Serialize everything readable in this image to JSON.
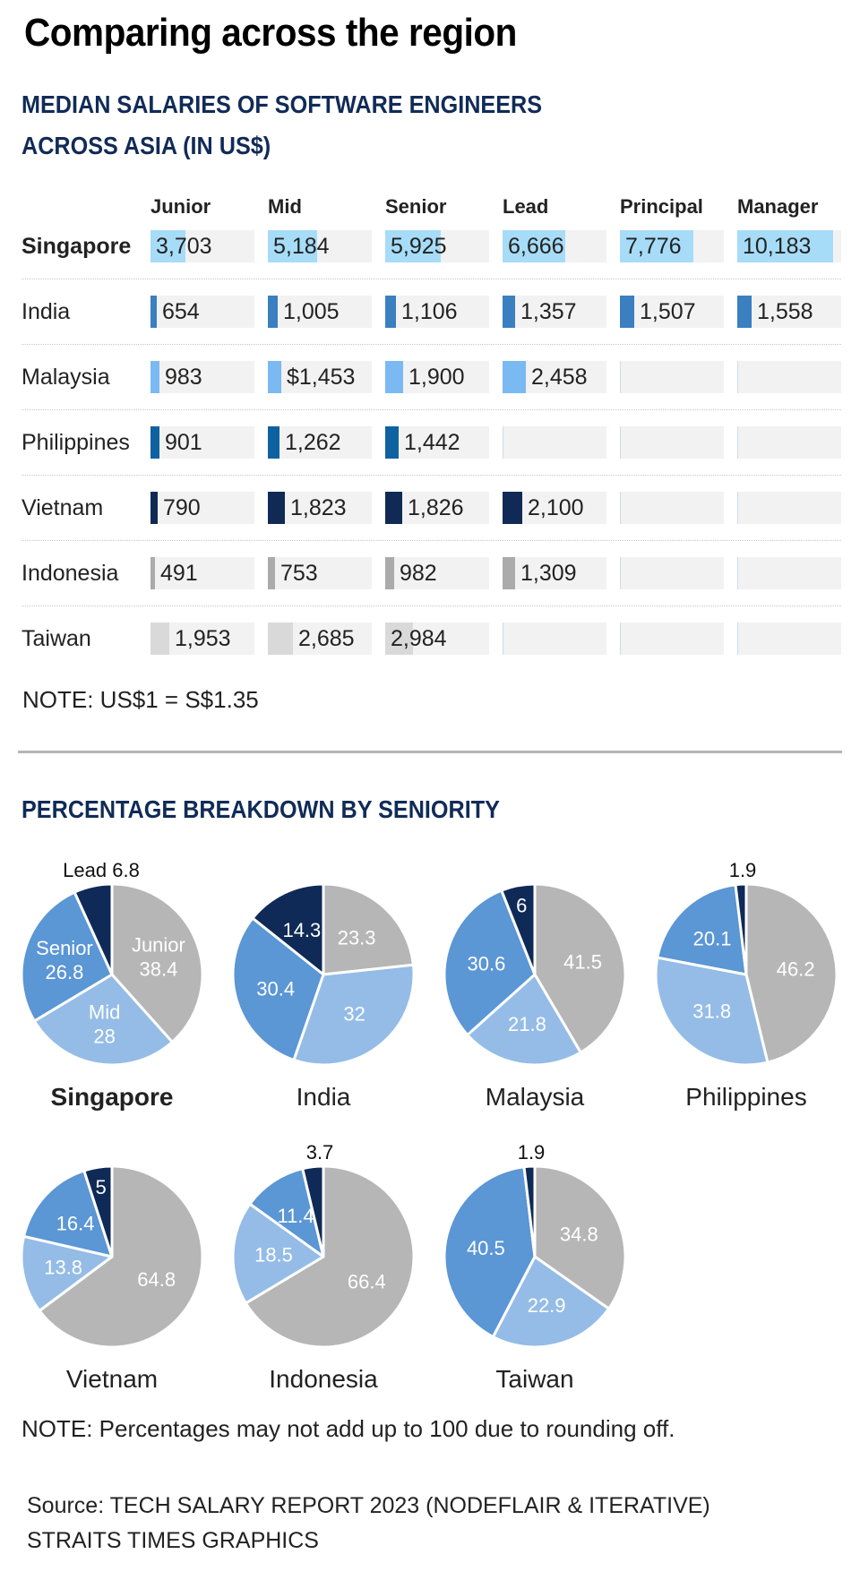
{
  "title": "Comparing across the region",
  "salary_section": {
    "heading_line1": "MEDIAN SALARIES OF SOFTWARE ENGINEERS",
    "heading_line2": "ACROSS ASIA (IN US$)",
    "note": "NOTE: US$1 = S$1.35"
  },
  "pie_section": {
    "heading": "PERCENTAGE BREAKDOWN BY SENIORITY",
    "note": "NOTE: Percentages may not add up to 100 due to rounding off."
  },
  "source": {
    "line1": "Source: TECH SALARY REPORT 2023 (NODEFLAIR & ITERATIVE)",
    "line2": "STRAITS TIMES GRAPHICS"
  },
  "colors": {
    "singapore": "#a6dcf7",
    "india": "#3a7fc0",
    "malaysia": "#7ab9f2",
    "philippines": "#0f62a0",
    "vietnam": "#102a55",
    "indonesia": "#ababab",
    "taiwan": "#d9d9d9",
    "junior": "#b6b6b6",
    "mid": "#94bce6",
    "senior": "#5b96d5",
    "lead": "#0f2a57",
    "heading": "#112b57"
  },
  "chart_data": [
    {
      "type": "table",
      "title": "MEDIAN SALARIES OF SOFTWARE ENGINEERS ACROSS ASIA (IN US$)",
      "columns": [
        "Junior",
        "Mid",
        "Senior",
        "Lead",
        "Principal",
        "Manager"
      ],
      "bar_scale_max": 11000,
      "rows": [
        {
          "country": "Singapore",
          "bold": true,
          "color_key": "singapore",
          "display": [
            "3,703",
            "5,184",
            "5,925",
            "6,666",
            "7,776",
            "10,183"
          ],
          "values": [
            3703,
            5184,
            5925,
            6666,
            7776,
            10183
          ]
        },
        {
          "country": "India",
          "bold": false,
          "color_key": "india",
          "display": [
            "654",
            "1,005",
            "1,106",
            "1,357",
            "1,507",
            "1,558"
          ],
          "values": [
            654,
            1005,
            1106,
            1357,
            1507,
            1558
          ]
        },
        {
          "country": "Malaysia",
          "bold": false,
          "color_key": "malaysia",
          "display": [
            "983",
            "$1,453",
            "1,900",
            "2,458",
            "",
            ""
          ],
          "values": [
            983,
            1453,
            1900,
            2458,
            null,
            null
          ]
        },
        {
          "country": "Philippines",
          "bold": false,
          "color_key": "philippines",
          "display": [
            "901",
            "1,262",
            "1,442",
            "",
            "",
            ""
          ],
          "values": [
            901,
            1262,
            1442,
            null,
            null,
            null
          ]
        },
        {
          "country": "Vietnam",
          "bold": false,
          "color_key": "vietnam",
          "display": [
            "790",
            "1,823",
            "1,826",
            "2,100",
            "",
            ""
          ],
          "values": [
            790,
            1823,
            1826,
            2100,
            null,
            null
          ]
        },
        {
          "country": "Indonesia",
          "bold": false,
          "color_key": "indonesia",
          "display": [
            "491",
            "753",
            "982",
            "1,309",
            "",
            ""
          ],
          "values": [
            491,
            753,
            982,
            1309,
            null,
            null
          ]
        },
        {
          "country": "Taiwan",
          "bold": false,
          "color_key": "taiwan",
          "display": [
            "1,953",
            "2,685",
            "2,984",
            "",
            "",
            ""
          ],
          "values": [
            1953,
            2685,
            2984,
            null,
            null,
            null
          ]
        }
      ]
    },
    {
      "type": "pie",
      "title": "PERCENTAGE BREAKDOWN BY SENIORITY",
      "categories": [
        "Junior",
        "Mid",
        "Senior",
        "Lead"
      ],
      "pies": [
        {
          "country": "Singapore",
          "bold": true,
          "values": [
            38.4,
            28,
            26.8,
            6.8
          ],
          "labels": [
            "Junior\n38.4",
            "Mid\n28",
            "Senior\n26.8",
            "Lead 6.8"
          ],
          "outside": [
            false,
            false,
            false,
            true
          ]
        },
        {
          "country": "India",
          "bold": false,
          "values": [
            23.3,
            32,
            30.4,
            14.3
          ],
          "labels": [
            "23.3",
            "32",
            "30.4",
            "14.3"
          ],
          "outside": [
            false,
            false,
            false,
            false
          ]
        },
        {
          "country": "Malaysia",
          "bold": false,
          "values": [
            41.5,
            21.8,
            30.6,
            6
          ],
          "labels": [
            "41.5",
            "21.8",
            "30.6",
            "6"
          ],
          "outside": [
            false,
            false,
            false,
            false
          ]
        },
        {
          "country": "Philippines",
          "bold": false,
          "values": [
            46.2,
            31.8,
            20.1,
            1.9
          ],
          "labels": [
            "46.2",
            "31.8",
            "20.1",
            "1.9"
          ],
          "outside": [
            false,
            false,
            false,
            true
          ]
        },
        {
          "country": "Vietnam",
          "bold": false,
          "values": [
            64.8,
            13.8,
            16.4,
            5
          ],
          "labels": [
            "64.8",
            "13.8",
            "16.4",
            "5"
          ],
          "outside": [
            false,
            false,
            false,
            false
          ]
        },
        {
          "country": "Indonesia",
          "bold": false,
          "values": [
            66.4,
            18.5,
            11.4,
            3.7
          ],
          "labels": [
            "66.4",
            "18.5",
            "11.4",
            "3.7"
          ],
          "outside": [
            false,
            false,
            false,
            true
          ]
        },
        {
          "country": "Taiwan",
          "bold": false,
          "values": [
            34.8,
            22.9,
            40.5,
            1.9
          ],
          "labels": [
            "34.8",
            "22.9",
            "40.5",
            "1.9"
          ],
          "outside": [
            false,
            false,
            false,
            true
          ]
        }
      ]
    }
  ]
}
